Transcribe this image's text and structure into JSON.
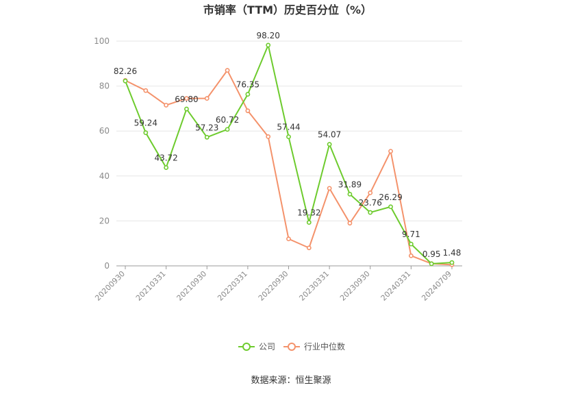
{
  "chart_data": {
    "type": "line",
    "title": "市销率（TTM）历史百分位（%）",
    "xlabel": "",
    "ylabel": "",
    "ylim": [
      0,
      100
    ],
    "yticks": [
      0,
      20,
      40,
      60,
      80,
      100
    ],
    "x_tick_labels": [
      "20200930",
      "20210331",
      "20210930",
      "20220331",
      "20220930",
      "20230331",
      "20230930",
      "20240331",
      "20240709"
    ],
    "grid": true,
    "legend_position": "bottom",
    "series": [
      {
        "name": "公司",
        "color": "#6dcb2d",
        "values": [
          82.26,
          59.24,
          43.72,
          69.8,
          57.23,
          60.72,
          76.35,
          98.2,
          57.44,
          19.32,
          54.07,
          31.89,
          23.76,
          26.29,
          9.71,
          0.95,
          1.48
        ],
        "labels": [
          "82.26",
          "59.24",
          "43.72",
          "69.80",
          "57.23",
          "60.72",
          "76.35",
          "98.20",
          "57.44",
          "19.32",
          "54.07",
          "31.89",
          "23.76",
          "26.29",
          "9.71",
          "0.95",
          "1.48"
        ]
      },
      {
        "name": "行业中位数",
        "color": "#f4926b",
        "values": [
          82.5,
          78,
          71.5,
          74.5,
          74.5,
          87,
          69,
          57.5,
          12,
          8,
          34.5,
          19,
          32.5,
          51,
          4.5,
          1,
          0.5
        ]
      }
    ]
  },
  "source": "数据来源：恒生聚源"
}
